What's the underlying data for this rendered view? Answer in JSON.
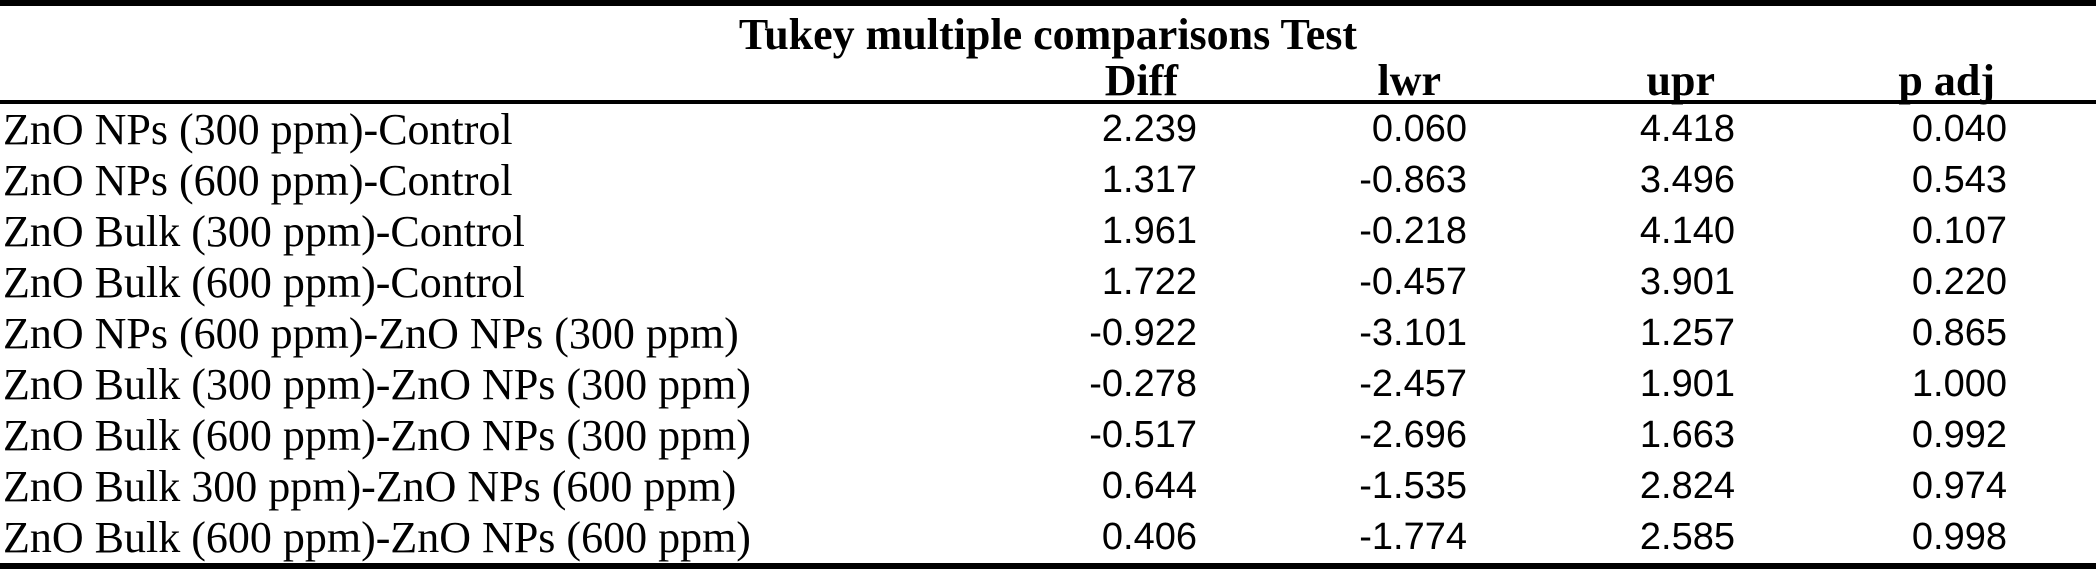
{
  "page": {
    "background_color": "#ffffff",
    "text_color": "#000000",
    "rule_color": "#000000"
  },
  "table": {
    "title": "Tukey multiple comparisons Test",
    "headers": {
      "comparison": "",
      "diff": "Diff",
      "lwr": "lwr",
      "upr": "upr",
      "p_adj": "p adj"
    },
    "rows": [
      {
        "comparison": "ZnO NPs (300 ppm)-Control",
        "diff": "2.239",
        "lwr": "0.060",
        "upr": "4.418",
        "p_adj": "0.040"
      },
      {
        "comparison": "ZnO NPs (600 ppm)-Control",
        "diff": "1.317",
        "lwr": "-0.863",
        "upr": "3.496",
        "p_adj": "0.543"
      },
      {
        "comparison": "ZnO Bulk (300 ppm)-Control",
        "diff": "1.961",
        "lwr": "-0.218",
        "upr": "4.140",
        "p_adj": "0.107"
      },
      {
        "comparison": "ZnO Bulk (600 ppm)-Control",
        "diff": "1.722",
        "lwr": "-0.457",
        "upr": "3.901",
        "p_adj": "0.220"
      },
      {
        "comparison": "ZnO NPs (600 ppm)-ZnO NPs (300 ppm)",
        "diff": "-0.922",
        "lwr": "-3.101",
        "upr": "1.257",
        "p_adj": "0.865"
      },
      {
        "comparison": "ZnO Bulk (300 ppm)-ZnO NPs (300 ppm)",
        "diff": "-0.278",
        "lwr": "-2.457",
        "upr": "1.901",
        "p_adj": "1.000"
      },
      {
        "comparison": "ZnO Bulk (600 ppm)-ZnO NPs (300 ppm)",
        "diff": "-0.517",
        "lwr": "-2.696",
        "upr": "1.663",
        "p_adj": "0.992"
      },
      {
        "comparison": "ZnO Bulk 300 ppm)-ZnO NPs (600 ppm)",
        "diff": "0.644",
        "lwr": "-1.535",
        "upr": "2.824",
        "p_adj": "0.974"
      },
      {
        "comparison": "ZnO Bulk (600 ppm)-ZnO NPs (600 ppm)",
        "diff": "0.406",
        "lwr": "-1.774",
        "upr": "2.585",
        "p_adj": "0.998"
      }
    ]
  }
}
